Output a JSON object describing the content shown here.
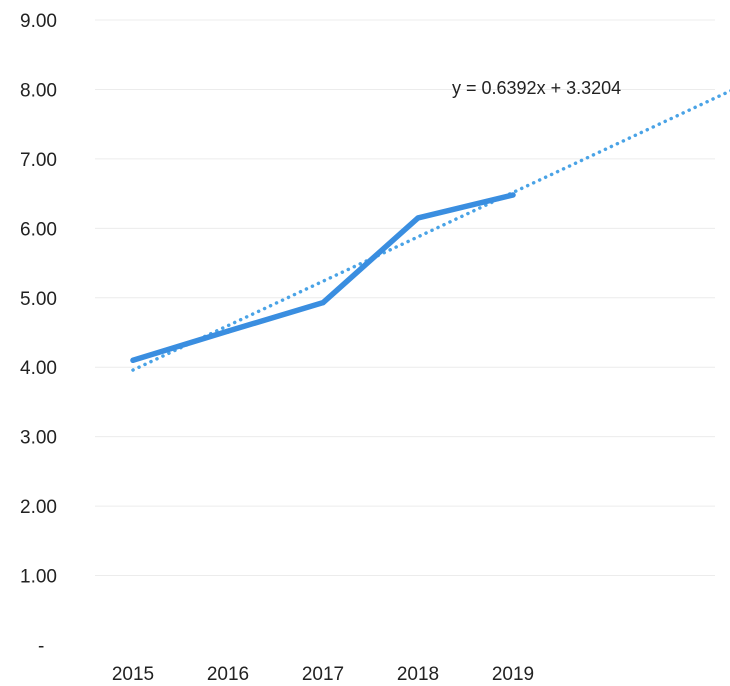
{
  "chart_data": {
    "type": "line",
    "categories": [
      "2015",
      "2016",
      "2017",
      "2018",
      "2019"
    ],
    "x": [
      1,
      2,
      3,
      4,
      5
    ],
    "series": [
      {
        "values": [
          4.1,
          4.52,
          4.93,
          6.15,
          6.48
        ],
        "color": "#3a8ee0"
      }
    ],
    "trendline": {
      "slope": 0.6392,
      "intercept": 3.3204,
      "x_range": [
        1,
        7.3
      ],
      "equation_label": "y = 0.6392x + 3.3204",
      "style": "dotted",
      "color": "#4aa3e6"
    },
    "ylim": [
      0,
      9
    ],
    "y_ticks": [
      "-",
      "1.00",
      "2.00",
      "3.00",
      "4.00",
      "5.00",
      "6.00",
      "7.00",
      "8.00",
      "9.00"
    ],
    "grid": true,
    "legend": "none"
  }
}
